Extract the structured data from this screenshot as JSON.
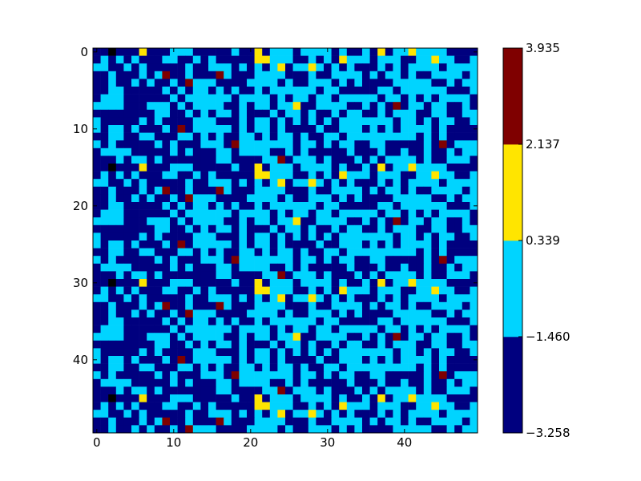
{
  "chart_data": {
    "type": "heatmap",
    "title": "",
    "xlabel": "",
    "ylabel": "",
    "rows": 50,
    "cols": 50,
    "x_ticks": [
      "0",
      "10",
      "20",
      "30",
      "40"
    ],
    "y_ticks": [
      "0",
      "10",
      "20",
      "30",
      "40"
    ],
    "grid": false,
    "colorbar": {
      "placement": "right",
      "levels": [
        {
          "range": [
            -3.258,
            -1.46
          ],
          "color": "#00007f"
        },
        {
          "range": [
            -1.46,
            0.339
          ],
          "color": "#00d4ff"
        },
        {
          "range": [
            0.339,
            2.137
          ],
          "color": "#ffe500"
        },
        {
          "range": [
            2.137,
            3.935
          ],
          "color": "#7f0000"
        }
      ],
      "tick_labels": [
        "−3.258",
        "−1.460",
        "0.339",
        "2.137",
        "3.935"
      ]
    },
    "grid_rows": [
      "11011131112221111121131222122221211213122322221111",
      "12121211122112121111133222112121322212221122322112",
      "22112121111121122212121231223212121112121222212222",
      "11211121241121114211122221112112222121221211222212",
      "11211212112142221111222212112221212111122222112122",
      "11221111121212212121121222222122111112212222221112",
      "12221111112122222212222121221221222221221212122221",
      "22221112221212222112122122311222211212141221221121",
      "11111111221121212212111212212112122112122211221122",
      "21111121211112221112122121212121222222212212122112",
      "21221211121412222212122121111211222121212222121111",
      "11221122111221212112212122121122122222222212121111",
      "21211111212111222142222222122121221122111112141222",
      "12222111112121112212222112121111121112112112112122",
      "11121221211111112211112241222121112121222212112221"
    ]
  }
}
